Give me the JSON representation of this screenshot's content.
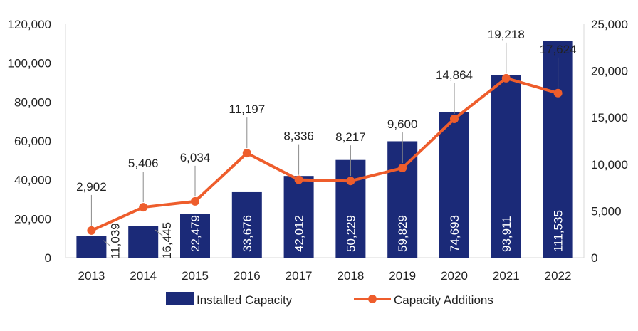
{
  "chart_data": {
    "type": "bar",
    "categories": [
      "2013",
      "2014",
      "2015",
      "2016",
      "2017",
      "2018",
      "2019",
      "2020",
      "2021",
      "2022"
    ],
    "series": [
      {
        "name": "Installed Capacity",
        "type": "bar",
        "axis": "left",
        "color": "#1b2a78",
        "values": [
          11039,
          16445,
          22479,
          33676,
          42012,
          50229,
          59829,
          74693,
          93911,
          111535
        ],
        "labels": [
          "11,039",
          "16,445",
          "22,479",
          "33,676",
          "42,012",
          "50,229",
          "59,829",
          "74,693",
          "93,911",
          "111,535"
        ]
      },
      {
        "name": "Capacity Additions",
        "type": "line",
        "axis": "right",
        "color": "#ee5d2c",
        "values": [
          2902,
          5406,
          6034,
          11197,
          8336,
          8217,
          9600,
          14864,
          19218,
          17624
        ],
        "labels": [
          "2,902",
          "5,406",
          "6,034",
          "11,197",
          "8,336",
          "8,217",
          "9,600",
          "14,864",
          "19,218",
          "17,624"
        ]
      }
    ],
    "y_left": {
      "ylim": [
        0,
        120000
      ],
      "ticks": [
        0,
        20000,
        40000,
        60000,
        80000,
        100000,
        120000
      ],
      "tick_labels": [
        "0",
        "20,000",
        "40,000",
        "60,000",
        "80,000",
        "100,000",
        "120,000"
      ]
    },
    "y_right": {
      "ylim": [
        0,
        25000
      ],
      "ticks": [
        0,
        5000,
        10000,
        15000,
        20000,
        25000
      ],
      "tick_labels": [
        "0",
        "5,000",
        "10,000",
        "15,000",
        "20,000",
        "25,000"
      ]
    },
    "title": "",
    "xlabel": "",
    "ylabel": "",
    "grid": false,
    "legend": "bottom"
  }
}
